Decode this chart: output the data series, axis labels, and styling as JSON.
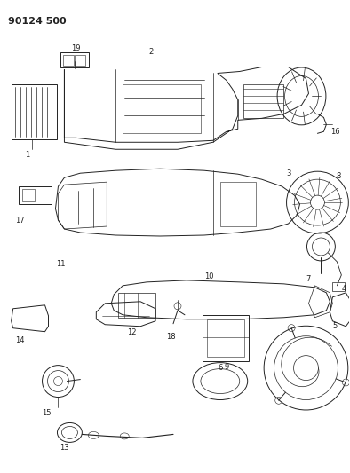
{
  "title": "90124 500",
  "bg": "#ffffff",
  "lc": "#222222",
  "fig_w": 3.94,
  "fig_h": 5.33,
  "dpi": 100
}
